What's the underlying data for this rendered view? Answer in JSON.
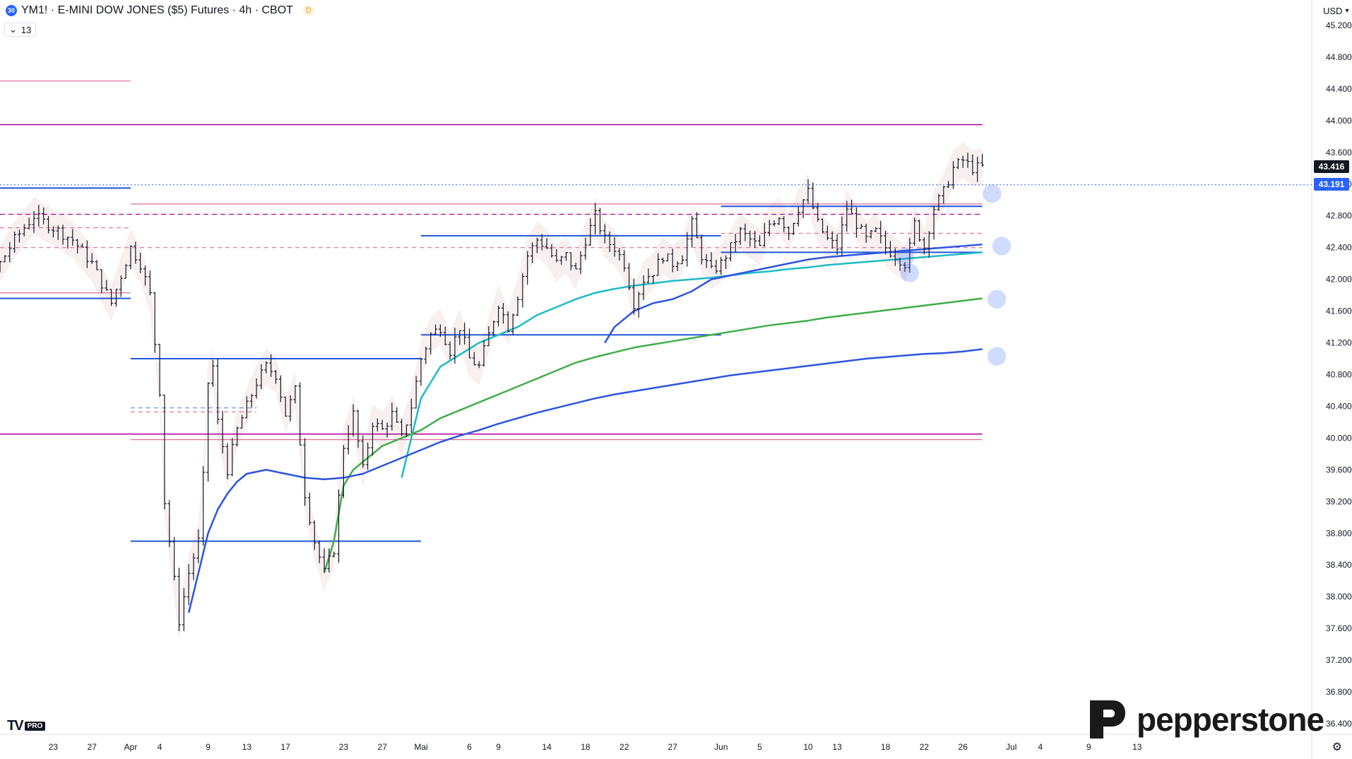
{
  "header": {
    "symbol_badge": "30",
    "title": "YM1! · E-MINI DOW JONES ($5) Futures · 4h · CBOT",
    "session_badge": "D",
    "indicator_count": "13",
    "currency": "USD"
  },
  "price_tags": {
    "last_price": "43.416",
    "reference_price": "43.191"
  },
  "logos": {
    "tv": "TV",
    "tv_badge": "PRO",
    "brand": "pepperstone"
  },
  "icons": {
    "settings": "gear-icon",
    "chevron": "chevron-down-icon",
    "brand_mark": "pepperstone-p-logo"
  },
  "colors": {
    "candle": "#131722",
    "support_blue": "#2157d9",
    "magenta": "#b1009a",
    "pink": "#e06a9a",
    "ma_cyan": "#1fbac6",
    "ma_green": "#3fae49",
    "ma_blue": "#2c55e0",
    "band_fill": "#f3e1e1",
    "last_price_bg": "#131722",
    "ref_price_bg": "#2962ff"
  },
  "chart_data": {
    "type": "candlestick",
    "y_axis": {
      "side": "right",
      "ticks": [
        36400,
        36800,
        37200,
        37600,
        38000,
        38400,
        38800,
        39200,
        39600,
        40000,
        40400,
        40800,
        41200,
        41600,
        42000,
        42400,
        42800,
        43200,
        43600,
        44000,
        44400,
        44800,
        45200
      ],
      "tick_labels": [
        "36.400",
        "36.800",
        "37.200",
        "37.600",
        "38.000",
        "38.400",
        "38.800",
        "39.200",
        "39.600",
        "40.000",
        "40.400",
        "40.800",
        "41.200",
        "41.600",
        "42.000",
        "42.400",
        "42.800",
        "43.200",
        "43.600",
        "44.000",
        "44.400",
        "44.800",
        "45.200"
      ],
      "range": [
        36300,
        45300
      ]
    },
    "x_axis": {
      "labels": [
        "23",
        "27",
        "Apr",
        "4",
        "9",
        "13",
        "17",
        "23",
        "27",
        "Mai",
        "6",
        "9",
        "14",
        "18",
        "22",
        "27",
        "Jun",
        "5",
        "10",
        "13",
        "18",
        "22",
        "26",
        "Jul",
        "4",
        "9",
        "13"
      ],
      "label_days": [
        -8,
        -4,
        0,
        3,
        8,
        12,
        16,
        22,
        26,
        30,
        35,
        38,
        43,
        47,
        51,
        56,
        61,
        65,
        70,
        73,
        78,
        82,
        86,
        91,
        94,
        99,
        104
      ]
    },
    "price_path": {
      "days": [
        -22,
        -20,
        -18,
        -16,
        -14,
        -12,
        -10,
        -8,
        -6,
        -4,
        -2,
        0,
        1,
        2,
        3,
        3.5,
        4,
        5,
        5.5,
        6,
        7,
        7.5,
        8,
        8.5,
        9,
        10,
        11,
        12,
        13,
        14,
        15,
        16,
        17,
        18,
        19,
        20,
        21,
        22,
        23,
        24,
        25,
        26,
        27,
        28,
        29,
        30,
        31,
        32,
        33,
        34,
        35,
        36,
        37,
        38,
        39,
        40,
        41,
        42,
        43,
        44,
        45,
        46,
        47,
        48,
        49,
        50,
        51,
        52,
        53,
        54,
        55,
        56,
        57,
        58,
        59,
        60,
        61,
        62,
        63,
        64,
        65,
        66,
        67,
        68,
        69,
        70,
        71,
        72,
        73,
        74,
        75,
        76,
        77,
        78,
        79,
        80,
        80.5,
        81,
        82,
        83,
        84,
        85,
        86,
        87,
        88
      ],
      "close": [
        42200,
        42000,
        42300,
        41900,
        42100,
        42500,
        42800,
        42650,
        42500,
        42200,
        41700,
        42400,
        42200,
        41800,
        40600,
        39200,
        38700,
        37700,
        38000,
        38300,
        38700,
        39500,
        40700,
        40900,
        40200,
        39600,
        40100,
        40400,
        40700,
        40900,
        40800,
        40300,
        40600,
        39300,
        38700,
        38300,
        38600,
        39900,
        40300,
        39600,
        40200,
        40100,
        40300,
        40000,
        40400,
        41000,
        41300,
        41400,
        41100,
        41400,
        41000,
        40900,
        41300,
        41700,
        41400,
        41800,
        42300,
        42500,
        42400,
        42200,
        42300,
        42100,
        42500,
        42800,
        42500,
        42400,
        42200,
        41700,
        42000,
        42100,
        42300,
        42200,
        42300,
        42700,
        42300,
        42100,
        42200,
        42400,
        42600,
        42500,
        42400,
        42700,
        42800,
        42600,
        42900,
        43100,
        42700,
        42500,
        42400,
        42900,
        42700,
        42500,
        42600,
        42400,
        42300,
        42200,
        42400,
        42700,
        42400,
        42900,
        43100,
        43400,
        43500,
        43400,
        43416
      ]
    },
    "moving_averages": [
      {
        "color": "cyan",
        "days": [
          28,
          30,
          32,
          34,
          36,
          38,
          40,
          42,
          44,
          46,
          48,
          50,
          52,
          54,
          56,
          58,
          60,
          62,
          64,
          66,
          68,
          70,
          72,
          74,
          76,
          78,
          80,
          82,
          84,
          86,
          88
        ],
        "values": [
          39500,
          40500,
          40900,
          41050,
          41200,
          41300,
          41400,
          41550,
          41650,
          41750,
          41830,
          41880,
          41920,
          41950,
          41980,
          42000,
          42020,
          42050,
          42080,
          42100,
          42130,
          42150,
          42180,
          42200,
          42220,
          42240,
          42260,
          42280,
          42300,
          42320,
          42340
        ]
      },
      {
        "color": "green",
        "days": [
          20,
          21,
          22,
          23,
          24,
          26,
          28,
          30,
          32,
          34,
          36,
          38,
          40,
          42,
          44,
          46,
          48,
          50,
          52,
          54,
          56,
          58,
          60,
          62,
          64,
          66,
          68,
          70,
          72,
          74,
          76,
          78,
          80,
          82,
          84,
          86,
          88
        ],
        "values": [
          38300,
          38700,
          39400,
          39600,
          39700,
          39900,
          40000,
          40100,
          40250,
          40350,
          40450,
          40550,
          40650,
          40750,
          40850,
          40950,
          41020,
          41080,
          41140,
          41180,
          41220,
          41260,
          41300,
          41340,
          41380,
          41420,
          41450,
          41480,
          41520,
          41550,
          41580,
          41610,
          41640,
          41670,
          41700,
          41730,
          41760
        ]
      },
      {
        "color": "blue",
        "days": [
          6,
          7,
          8,
          9,
          10,
          11,
          12,
          14,
          16,
          18,
          20,
          22,
          24,
          26,
          28,
          30,
          32,
          34,
          36,
          38,
          40,
          42,
          44,
          46,
          48,
          50,
          52,
          54,
          56,
          58,
          60,
          62,
          64,
          66,
          68,
          70,
          72,
          74,
          76,
          78,
          80,
          82,
          84,
          86,
          88
        ],
        "values": [
          37800,
          38300,
          38800,
          39100,
          39300,
          39450,
          39550,
          39600,
          39550,
          39500,
          39480,
          39500,
          39550,
          39650,
          39750,
          39850,
          39950,
          40030,
          40100,
          40180,
          40250,
          40320,
          40380,
          40440,
          40500,
          40550,
          40590,
          40630,
          40670,
          40710,
          40750,
          40790,
          40820,
          40850,
          40880,
          40910,
          40940,
          40970,
          41000,
          41020,
          41040,
          41060,
          41070,
          41090,
          41120
        ]
      },
      {
        "color": "blue",
        "days": [
          49,
          50,
          51,
          52,
          53,
          54,
          56,
          58,
          60,
          62,
          64,
          66,
          68,
          70,
          72,
          74,
          76,
          78,
          80,
          82,
          84,
          86,
          88
        ],
        "values": [
          41200,
          41400,
          41500,
          41600,
          41650,
          41700,
          41750,
          41850,
          42000,
          42050,
          42100,
          42150,
          42200,
          42250,
          42280,
          42300,
          42320,
          42340,
          42360,
          42380,
          42400,
          42420,
          42440
        ]
      }
    ],
    "horizontal_levels": [
      {
        "price": 44500,
        "from_day": -22,
        "to_day": 0,
        "style": "pink"
      },
      {
        "price": 43950,
        "from_day": -22,
        "to_day": 88,
        "style": "magenta"
      },
      {
        "price": 43150,
        "from_day": -22,
        "to_day": 0,
        "style": "blue"
      },
      {
        "price": 42950,
        "from_day": 0,
        "to_day": 88,
        "style": "pink"
      },
      {
        "price": 42920,
        "from_day": 61,
        "to_day": 88,
        "style": "blue"
      },
      {
        "price": 42820,
        "from_day": -22,
        "to_day": 88,
        "style": "magenta-dashed"
      },
      {
        "price": 42650,
        "from_day": -22,
        "to_day": 0,
        "style": "pink-dashed"
      },
      {
        "price": 42550,
        "from_day": 30,
        "to_day": 61,
        "style": "blue"
      },
      {
        "price": 42580,
        "from_day": 61,
        "to_day": 88,
        "style": "pink-dashed"
      },
      {
        "price": 42400,
        "from_day": -22,
        "to_day": 88,
        "style": "pink-dashed"
      },
      {
        "price": 42340,
        "from_day": 61,
        "to_day": 88,
        "style": "blue"
      },
      {
        "price": 41830,
        "from_day": -22,
        "to_day": 0,
        "style": "pink"
      },
      {
        "price": 41760,
        "from_day": -22,
        "to_day": 0,
        "style": "blue"
      },
      {
        "price": 41300,
        "from_day": 30,
        "to_day": 61,
        "style": "blue"
      },
      {
        "price": 41000,
        "from_day": 0,
        "to_day": 30,
        "style": "blue"
      },
      {
        "price": 40380,
        "from_day": 0,
        "to_day": 13,
        "style": "blue-dashed"
      },
      {
        "price": 40330,
        "from_day": 0,
        "to_day": 13,
        "style": "pink-dashed"
      },
      {
        "price": 40050,
        "from_day": -22,
        "to_day": 88,
        "style": "magenta"
      },
      {
        "price": 39980,
        "from_day": 0,
        "to_day": 88,
        "style": "pink"
      },
      {
        "price": 38700,
        "from_day": 0,
        "to_day": 30,
        "style": "blue"
      }
    ],
    "reference_line": {
      "price": 43191,
      "style": "dotted-blue"
    },
    "markers": [
      {
        "day": 89,
        "price": 43080
      },
      {
        "day": 90,
        "price": 42420
      },
      {
        "day": 89.5,
        "price": 41750
      },
      {
        "day": 89.5,
        "price": 41030
      },
      {
        "day": 80.5,
        "price": 42080
      },
      {
        "day": 80,
        "price": 42280
      }
    ]
  }
}
